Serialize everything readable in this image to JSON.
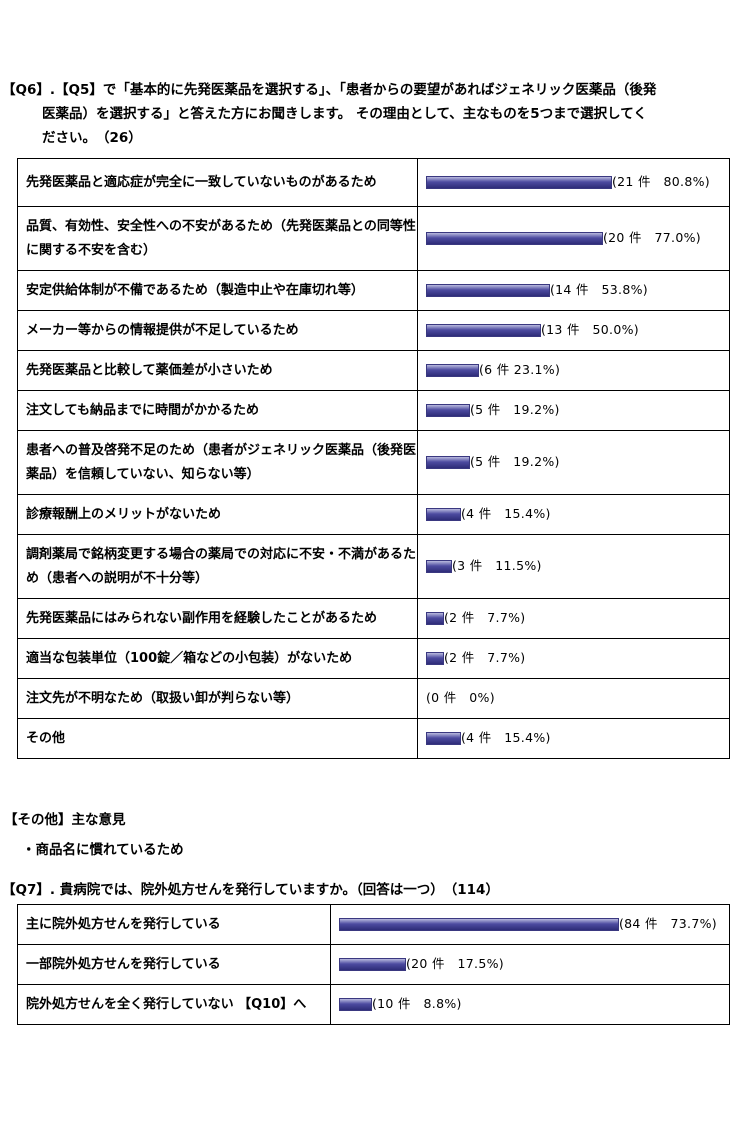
{
  "q6": {
    "line1": "【Q6】.【Q5】で「基本的に先発医薬品を選択する」、「患者からの要望があればジェネリック医薬品（後発",
    "line2": "医薬品）を選択する」と答えた方にお聞きします。 その理由として、主なものを5つまで選択してく",
    "line3": "ださい。　（26）",
    "rows": [
      {
        "label": "先発医薬品と適応症が完全に一致していないものがあるため",
        "value": "(21 件　80.8%)",
        "percent": 80.8
      },
      {
        "label": "品質、有効性、安全性への不安があるため（先発医薬品との同等性に関する不安を含む）",
        "value": "(20 件　77.0%)",
        "percent": 77.0
      },
      {
        "label": "安定供給体制が不備であるため（製造中止や在庫切れ等）",
        "value": "(14 件　53.8%)",
        "percent": 53.8
      },
      {
        "label": "メーカー等からの情報提供が不足しているため",
        "value": "(13 件　50.0%)",
        "percent": 50.0
      },
      {
        "label": "先発医薬品と比較して薬価差が小さいため",
        "value": "(6 件 23.1%)",
        "percent": 23.1
      },
      {
        "label": "注文しても納品までに時間がかかるため",
        "value": "(5 件　19.2%)",
        "percent": 19.2
      },
      {
        "label": "患者への普及啓発不足のため（患者がジェネリック医薬品（後発医薬品）を信頼していない、知らない等）",
        "value": "(5 件　19.2%)",
        "percent": 19.2
      },
      {
        "label": "診療報酬上のメリットがないため",
        "value": "(4 件　15.4%)",
        "percent": 15.4
      },
      {
        "label": "調剤薬局で銘柄変更する場合の薬局での対応に不安・不満があるため（患者への説明が不十分等）",
        "value": "(3 件　11.5%)",
        "percent": 11.5
      },
      {
        "label": "先発医薬品にはみられない副作用を経験したことがあるため",
        "value": "(2 件　7.7%)",
        "percent": 7.7
      },
      {
        "label": "適当な包装単位（100錠／箱などの小包装）がないため",
        "value": "(2 件　7.7%)",
        "percent": 7.7
      },
      {
        "label": "注文先が不明なため（取扱い卸が判らない等）",
        "value": "(0 件　0%)",
        "percent": 0
      },
      {
        "label": "その他",
        "value": "(4 件　15.4%)",
        "percent": 15.4
      }
    ]
  },
  "other": {
    "heading": "【その他】主な意見",
    "item": "・商品名に慣れているため"
  },
  "q7": {
    "line1": "【Q7】. 貴病院では、院外処方せんを発行していますか。（回答は一つ）　（114）",
    "rows": [
      {
        "label": "主に院外処方せんを発行している",
        "value": "(84 件　73.7%)",
        "percent": 73.7
      },
      {
        "label": "一部院外処方せんを発行している",
        "value": "(20 件　17.5%)",
        "percent": 17.5
      },
      {
        "label": "院外処方せんを全く発行していない 【Q10】へ",
        "value": "(10 件　8.8%)",
        "percent": 8.8
      }
    ]
  },
  "colors": {
    "bar_dark": "#2e2c78",
    "bar_light": "#b9b9de"
  }
}
